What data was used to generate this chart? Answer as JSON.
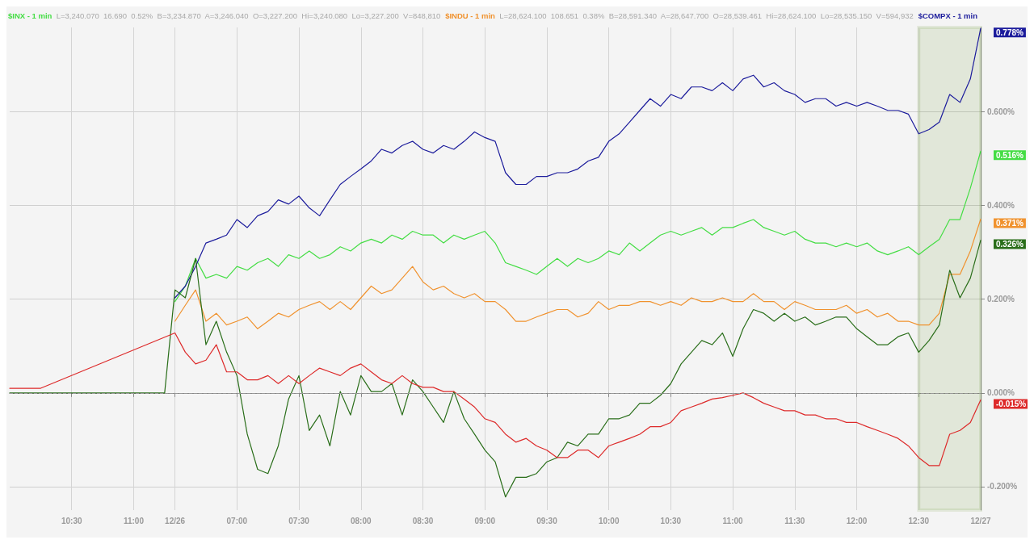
{
  "chart_data": {
    "type": "line",
    "categories": [
      null,
      null,
      null,
      null,
      null,
      null,
      "10:30",
      null,
      null,
      null,
      null,
      null,
      "11:00",
      null,
      null,
      null,
      "12/26",
      null,
      null,
      null,
      null,
      null,
      "07:00",
      null,
      null,
      null,
      null,
      null,
      "07:30",
      null,
      null,
      null,
      null,
      null,
      "08:00",
      null,
      null,
      null,
      null,
      null,
      "08:30",
      null,
      null,
      null,
      null,
      null,
      "09:00",
      null,
      null,
      null,
      null,
      null,
      "09:30",
      null,
      null,
      null,
      null,
      null,
      "10:00",
      null,
      null,
      null,
      null,
      null,
      "10:30",
      null,
      null,
      null,
      null,
      null,
      "11:00",
      null,
      null,
      null,
      null,
      null,
      "11:30",
      null,
      null,
      null,
      null,
      null,
      "12:00",
      null,
      null,
      null,
      null,
      null,
      "12:30",
      null,
      null,
      null,
      null,
      null,
      "12/27"
    ],
    "series": [
      {
        "name": "$INX - 1 min",
        "color": "#44dd44",
        "values": [
          null,
          null,
          null,
          null,
          null,
          null,
          null,
          null,
          null,
          null,
          null,
          null,
          null,
          null,
          null,
          null,
          0.195,
          0.228,
          0.287,
          0.245,
          0.253,
          0.245,
          0.27,
          0.262,
          0.278,
          0.287,
          0.27,
          0.295,
          0.287,
          0.303,
          0.287,
          0.295,
          0.312,
          0.303,
          0.32,
          0.328,
          0.32,
          0.337,
          0.328,
          0.345,
          0.337,
          0.337,
          0.32,
          0.337,
          0.328,
          0.337,
          0.345,
          0.32,
          0.278,
          0.27,
          0.262,
          0.253,
          0.27,
          0.287,
          0.27,
          0.287,
          0.278,
          0.287,
          0.303,
          0.295,
          0.32,
          0.303,
          0.32,
          0.337,
          0.345,
          0.337,
          0.345,
          0.353,
          0.337,
          0.353,
          0.353,
          0.362,
          0.37,
          0.353,
          0.345,
          0.337,
          0.345,
          0.328,
          0.32,
          0.32,
          0.312,
          0.32,
          0.312,
          0.32,
          0.303,
          0.295,
          0.303,
          0.312,
          0.295,
          0.312,
          0.328,
          0.37,
          0.37,
          0.437,
          0.516
        ]
      },
      {
        "name": "$INDU - 1 min",
        "color": "#f0922e",
        "values": [
          null,
          null,
          null,
          null,
          null,
          null,
          null,
          null,
          null,
          null,
          null,
          null,
          null,
          null,
          null,
          null,
          0.153,
          0.187,
          0.22,
          0.153,
          0.17,
          0.145,
          0.153,
          0.162,
          0.137,
          0.153,
          0.17,
          0.162,
          0.178,
          0.187,
          0.195,
          0.178,
          0.195,
          0.178,
          0.203,
          0.228,
          0.212,
          0.22,
          0.245,
          0.27,
          0.237,
          0.22,
          0.228,
          0.212,
          0.203,
          0.212,
          0.195,
          0.195,
          0.178,
          0.153,
          0.153,
          0.162,
          0.17,
          0.178,
          0.178,
          0.162,
          0.17,
          0.195,
          0.178,
          0.187,
          0.187,
          0.195,
          0.195,
          0.187,
          0.195,
          0.187,
          0.203,
          0.195,
          0.195,
          0.203,
          0.195,
          0.195,
          0.212,
          0.195,
          0.195,
          0.178,
          0.195,
          0.187,
          0.178,
          0.178,
          0.178,
          0.187,
          0.17,
          0.178,
          0.162,
          0.17,
          0.153,
          0.153,
          0.145,
          0.145,
          0.17,
          0.253,
          0.253,
          0.303,
          0.371
        ]
      },
      {
        "name": "$COMPX - 1 min",
        "color": "#1c1c9c",
        "values": [
          null,
          null,
          null,
          null,
          null,
          null,
          null,
          null,
          null,
          null,
          null,
          null,
          null,
          null,
          null,
          null,
          0.203,
          0.228,
          0.27,
          0.32,
          0.328,
          0.337,
          0.37,
          0.353,
          0.378,
          0.387,
          0.412,
          0.403,
          0.42,
          0.395,
          0.378,
          0.412,
          0.445,
          0.462,
          0.478,
          0.495,
          0.52,
          0.512,
          0.528,
          0.537,
          0.52,
          0.512,
          0.528,
          0.52,
          0.537,
          0.557,
          0.545,
          0.537,
          0.47,
          0.445,
          0.445,
          0.462,
          0.462,
          0.47,
          0.47,
          0.478,
          0.495,
          0.503,
          0.537,
          0.553,
          0.578,
          0.603,
          0.628,
          0.612,
          0.637,
          0.628,
          0.653,
          0.653,
          0.645,
          0.662,
          0.645,
          0.67,
          0.678,
          0.653,
          0.662,
          0.645,
          0.637,
          0.62,
          0.628,
          0.628,
          0.612,
          0.62,
          0.612,
          0.62,
          0.612,
          0.603,
          0.603,
          0.595,
          0.553,
          0.562,
          0.578,
          0.637,
          0.62,
          0.67,
          0.778
        ]
      },
      {
        "color": "#2a6e1a",
        "values": [
          0,
          0,
          0,
          0,
          0,
          0,
          0,
          0,
          0,
          0,
          0,
          0,
          0,
          0,
          0,
          0,
          0.22,
          0.203,
          0.287,
          0.103,
          0.153,
          0.087,
          0.037,
          -0.088,
          -0.163,
          -0.172,
          -0.113,
          -0.013,
          0.037,
          -0.08,
          -0.047,
          -0.113,
          0.003,
          -0.047,
          0.037,
          0.003,
          0.003,
          0.02,
          -0.047,
          0.028,
          0.003,
          -0.03,
          -0.063,
          0.003,
          -0.055,
          -0.088,
          -0.122,
          -0.147,
          -0.222,
          -0.18,
          -0.18,
          -0.172,
          -0.147,
          -0.138,
          -0.105,
          -0.113,
          -0.088,
          -0.088,
          -0.055,
          -0.055,
          -0.047,
          -0.022,
          -0.022,
          -0.005,
          0.02,
          0.062,
          0.087,
          0.112,
          0.103,
          0.128,
          0.078,
          0.137,
          0.178,
          0.17,
          0.153,
          0.17,
          0.153,
          0.162,
          0.145,
          0.153,
          0.162,
          0.162,
          0.137,
          0.12,
          0.103,
          0.103,
          0.12,
          0.128,
          0.087,
          0.112,
          0.145,
          0.262,
          0.203,
          0.245,
          0.326
        ]
      },
      {
        "color": "#dd2a2a",
        "values": [
          0.01,
          0.01,
          0.01,
          0.01,
          null,
          null,
          null,
          null,
          null,
          null,
          null,
          null,
          null,
          null,
          null,
          null,
          0.128,
          0.087,
          0.062,
          0.07,
          0.103,
          0.045,
          0.045,
          0.028,
          0.028,
          0.037,
          0.02,
          0.037,
          0.02,
          0.037,
          0.053,
          0.045,
          0.037,
          0.053,
          0.062,
          0.045,
          0.028,
          0.02,
          0.037,
          0.02,
          0.012,
          0.012,
          0.003,
          0.003,
          -0.013,
          -0.03,
          -0.055,
          -0.063,
          -0.088,
          -0.105,
          -0.097,
          -0.113,
          -0.122,
          -0.138,
          -0.138,
          -0.122,
          -0.122,
          -0.138,
          -0.113,
          -0.105,
          -0.097,
          -0.088,
          -0.072,
          -0.072,
          -0.063,
          -0.038,
          -0.03,
          -0.022,
          -0.013,
          -0.01,
          -0.005,
          0,
          -0.01,
          -0.022,
          -0.03,
          -0.038,
          -0.038,
          -0.047,
          -0.047,
          -0.055,
          -0.055,
          -0.063,
          -0.063,
          -0.072,
          -0.08,
          -0.088,
          -0.097,
          -0.113,
          -0.138,
          -0.155,
          -0.155,
          -0.088,
          -0.08,
          -0.063,
          -0.015
        ]
      }
    ],
    "value_labels": [
      [
        null,
        null,
        null,
        null,
        null,
        null,
        null,
        null,
        null,
        null,
        null,
        null,
        null,
        null,
        null,
        null,
        null,
        null,
        null,
        null,
        null,
        null,
        null,
        null,
        null,
        null,
        null,
        null,
        null,
        null,
        null,
        null,
        null,
        null,
        null,
        null,
        null,
        null,
        null,
        null,
        null,
        null,
        null,
        null,
        null,
        null,
        null,
        null,
        null,
        null,
        null,
        null,
        null,
        null,
        null,
        null,
        null,
        null,
        null,
        null,
        null,
        null,
        null,
        null,
        null,
        null,
        null,
        null,
        null,
        null,
        null,
        null,
        null,
        null,
        null,
        null,
        null,
        null,
        null,
        null,
        null,
        null,
        null,
        null,
        null,
        null,
        null,
        null,
        null,
        null,
        null,
        null,
        null,
        null,
        "0.516%"
      ],
      [
        null,
        null,
        null,
        null,
        null,
        null,
        null,
        null,
        null,
        null,
        null,
        null,
        null,
        null,
        null,
        null,
        null,
        null,
        null,
        null,
        null,
        null,
        null,
        null,
        null,
        null,
        null,
        null,
        null,
        null,
        null,
        null,
        null,
        null,
        null,
        null,
        null,
        null,
        null,
        null,
        null,
        null,
        null,
        null,
        null,
        null,
        null,
        null,
        null,
        null,
        null,
        null,
        null,
        null,
        null,
        null,
        null,
        null,
        null,
        null,
        null,
        null,
        null,
        null,
        null,
        null,
        null,
        null,
        null,
        null,
        null,
        null,
        null,
        null,
        null,
        null,
        null,
        null,
        null,
        null,
        null,
        null,
        null,
        null,
        null,
        null,
        null,
        null,
        null,
        null,
        null,
        null,
        null,
        null,
        "0.371%"
      ],
      [
        null,
        null,
        null,
        null,
        null,
        null,
        null,
        null,
        null,
        null,
        null,
        null,
        null,
        null,
        null,
        null,
        null,
        null,
        null,
        null,
        null,
        null,
        null,
        null,
        null,
        null,
        null,
        null,
        null,
        null,
        null,
        null,
        null,
        null,
        null,
        null,
        null,
        null,
        null,
        null,
        null,
        null,
        null,
        null,
        null,
        null,
        null,
        null,
        null,
        null,
        null,
        null,
        null,
        null,
        null,
        null,
        null,
        null,
        null,
        null,
        null,
        null,
        null,
        null,
        null,
        null,
        null,
        null,
        null,
        null,
        null,
        null,
        null,
        null,
        null,
        null,
        null,
        null,
        null,
        null,
        null,
        null,
        null,
        null,
        null,
        null,
        null,
        null,
        null,
        null,
        null,
        null,
        null,
        null,
        "0.778%"
      ],
      [
        null,
        null,
        null,
        null,
        null,
        null,
        null,
        null,
        null,
        null,
        null,
        null,
        null,
        null,
        null,
        null,
        null,
        null,
        null,
        null,
        null,
        null,
        null,
        null,
        null,
        null,
        null,
        null,
        null,
        null,
        null,
        null,
        null,
        null,
        null,
        null,
        null,
        null,
        null,
        null,
        null,
        null,
        null,
        null,
        null,
        null,
        null,
        null,
        null,
        null,
        null,
        null,
        null,
        null,
        null,
        null,
        null,
        null,
        null,
        null,
        null,
        null,
        null,
        null,
        null,
        null,
        null,
        null,
        null,
        null,
        null,
        null,
        null,
        null,
        null,
        null,
        null,
        null,
        null,
        null,
        null,
        null,
        null,
        null,
        null,
        null,
        null,
        null,
        null,
        null,
        null,
        null,
        null,
        null,
        "0.326%"
      ],
      [
        null,
        null,
        null,
        null,
        null,
        null,
        null,
        null,
        null,
        null,
        null,
        null,
        null,
        null,
        null,
        null,
        null,
        null,
        null,
        null,
        null,
        null,
        null,
        null,
        null,
        null,
        null,
        null,
        null,
        null,
        null,
        null,
        null,
        null,
        null,
        null,
        null,
        null,
        null,
        null,
        null,
        null,
        null,
        null,
        null,
        null,
        null,
        null,
        null,
        null,
        null,
        null,
        null,
        null,
        null,
        null,
        null,
        null,
        null,
        null,
        null,
        null,
        null,
        null,
        null,
        null,
        null,
        null,
        null,
        null,
        null,
        null,
        null,
        null,
        null,
        null,
        null,
        null,
        null,
        null,
        null,
        null,
        null,
        null,
        null,
        null,
        null,
        null,
        null,
        null,
        null,
        null,
        null,
        null,
        "-0.015%"
      ]
    ],
    "ylim": [
      -0.25,
      0.78
    ],
    "yticks": [
      {
        "value": -0.2,
        "label": "-0.200%"
      },
      {
        "value": 0,
        "label": "0.000%"
      },
      {
        "value": 0.2,
        "label": "0.200%"
      },
      {
        "value": 0.4,
        "label": "0.400%"
      },
      {
        "value": 0.6,
        "label": "0.600%"
      }
    ],
    "grid": true,
    "legend": false,
    "marker": "none",
    "line_style": "solid",
    "ref_lines": [
      {
        "axis": "y",
        "value": 0,
        "color": "#999999",
        "line_style": "dashed"
      }
    ],
    "bands": [
      {
        "axis": "x",
        "from": "12:30",
        "to": "12/27",
        "color": "#5a8a1a"
      }
    ],
    "annotations": [
      "L=3,240.070  16.690  0.52%  B=3,234.870  A=3,246.040  O=3,227.200  Hi=3,240.080  Lo=3,227.200  V=848,810",
      "L=28,624.100  108.651  0.38%  B=28,591.340  A=28,647.700  O=28,539.461  Hi=28,624.100  Lo=28,535.150  V=594,932"
    ]
  }
}
